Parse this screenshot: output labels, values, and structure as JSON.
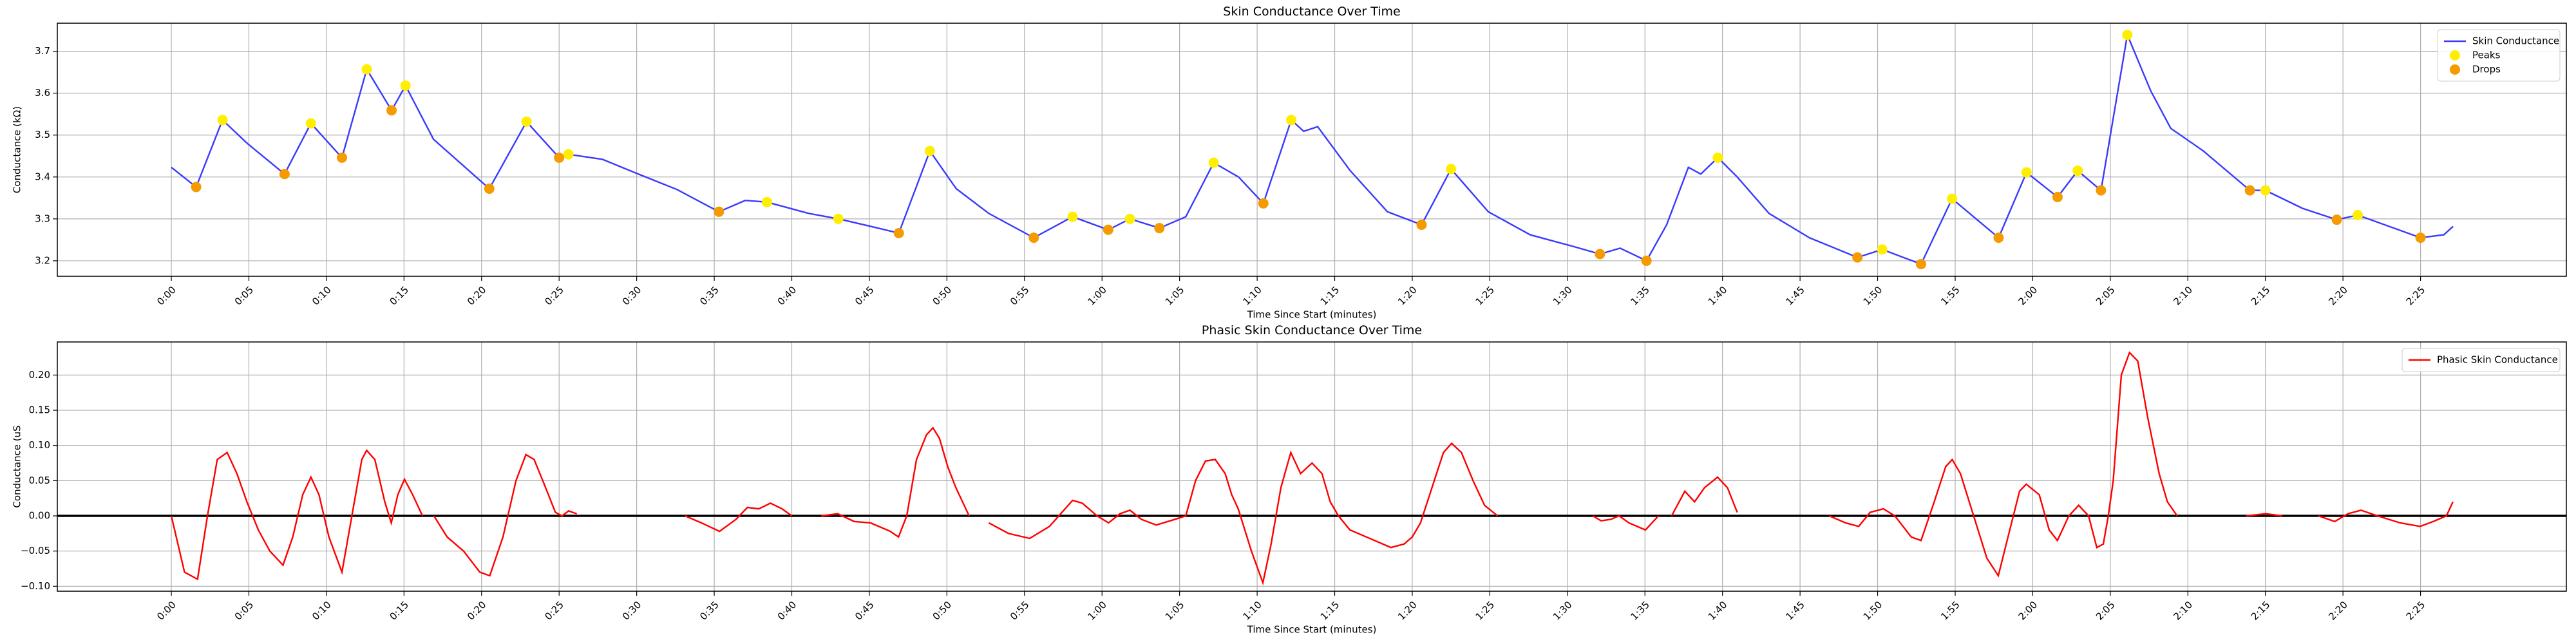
{
  "chart_data": [
    {
      "type": "line",
      "title": "Skin Conductance Over Time",
      "x_label": "Time Since Start (minutes)",
      "y_label": "Conductance (kΩ)",
      "xlim": [
        -7.35,
        154.4
      ],
      "ylim": [
        3.163,
        3.767
      ],
      "grid": true,
      "legend": "upper right",
      "xticks": [
        {
          "value": 0,
          "label": "0:00"
        },
        {
          "value": 5,
          "label": "0:05"
        },
        {
          "value": 10,
          "label": "0:10"
        },
        {
          "value": 15,
          "label": "0:15"
        },
        {
          "value": 20,
          "label": "0:20"
        },
        {
          "value": 25,
          "label": "0:25"
        },
        {
          "value": 30,
          "label": "0:30"
        },
        {
          "value": 35,
          "label": "0:35"
        },
        {
          "value": 40,
          "label": "0:40"
        },
        {
          "value": 45,
          "label": "0:45"
        },
        {
          "value": 50,
          "label": "0:50"
        },
        {
          "value": 55,
          "label": "0:55"
        },
        {
          "value": 60,
          "label": "1:00"
        },
        {
          "value": 65,
          "label": "1:05"
        },
        {
          "value": 70,
          "label": "1:10"
        },
        {
          "value": 75,
          "label": "1:15"
        },
        {
          "value": 80,
          "label": "1:20"
        },
        {
          "value": 85,
          "label": "1:25"
        },
        {
          "value": 90,
          "label": "1:30"
        },
        {
          "value": 95,
          "label": "1:35"
        },
        {
          "value": 100,
          "label": "1:40"
        },
        {
          "value": 105,
          "label": "1:45"
        },
        {
          "value": 110,
          "label": "1:50"
        },
        {
          "value": 115,
          "label": "1:55"
        },
        {
          "value": 120,
          "label": "2:00"
        },
        {
          "value": 125,
          "label": "2:05"
        },
        {
          "value": 130,
          "label": "2:10"
        },
        {
          "value": 135,
          "label": "2:15"
        },
        {
          "value": 140,
          "label": "2:20"
        },
        {
          "value": 145,
          "label": "2:25"
        }
      ],
      "yticks": [
        3.2,
        3.3,
        3.4,
        3.5,
        3.6,
        3.7
      ],
      "series": [
        {
          "name": "Skin Conductance",
          "style": "line",
          "color": "#3a3aff",
          "x": [
            0,
            1.6,
            3.3,
            4.9,
            7.3,
            9.0,
            11.0,
            12.6,
            14.2,
            15.1,
            16.9,
            20.5,
            22.9,
            25.0,
            25.6,
            27.8,
            29.9,
            32.6,
            35.3,
            37.0,
            38.4,
            41.1,
            43.0,
            45.1,
            46.9,
            48.9,
            50.6,
            52.7,
            55.6,
            58.1,
            60.4,
            61.8,
            63.7,
            65.4,
            67.2,
            68.8,
            70.4,
            72.2,
            73.0,
            73.9,
            76.0,
            78.4,
            80.6,
            82.5,
            84.9,
            87.6,
            90.3,
            92.1,
            93.4,
            95.1,
            96.4,
            97.8,
            98.6,
            99.7,
            100.95,
            103.0,
            105.6,
            108.7,
            110.3,
            112.8,
            114.8,
            117.8,
            119.6,
            121.6,
            122.9,
            124.4,
            126.1,
            127.6,
            128.9,
            131.0,
            134.0,
            135.0,
            137.4,
            139.6,
            140.95,
            145.0,
            146.5,
            147.1
          ],
          "values": [
            3.423,
            3.376,
            3.536,
            3.48,
            3.407,
            3.528,
            3.446,
            3.657,
            3.559,
            3.618,
            3.49,
            3.372,
            3.532,
            3.446,
            3.454,
            3.442,
            3.41,
            3.37,
            3.317,
            3.344,
            3.34,
            3.313,
            3.3,
            3.282,
            3.266,
            3.462,
            3.372,
            3.313,
            3.255,
            3.305,
            3.274,
            3.3,
            3.278,
            3.305,
            3.434,
            3.4,
            3.337,
            3.536,
            3.509,
            3.52,
            3.415,
            3.317,
            3.286,
            3.419,
            3.317,
            3.262,
            3.235,
            3.216,
            3.23,
            3.2,
            3.286,
            3.423,
            3.407,
            3.446,
            3.4,
            3.313,
            3.255,
            3.208,
            3.227,
            3.192,
            3.348,
            3.255,
            3.411,
            3.352,
            3.415,
            3.368,
            3.739,
            3.606,
            3.516,
            3.462,
            3.368,
            3.368,
            3.325,
            3.298,
            3.309,
            3.255,
            3.262,
            3.282
          ]
        },
        {
          "name": "Peaks",
          "style": "points",
          "color": "#ffee00",
          "x": [
            3.3,
            9.0,
            12.6,
            15.1,
            22.9,
            25.6,
            38.4,
            43.0,
            48.9,
            58.1,
            61.8,
            67.2,
            72.2,
            82.5,
            99.7,
            110.3,
            114.8,
            119.6,
            122.9,
            126.1,
            135.0,
            140.95
          ],
          "values": [
            3.536,
            3.528,
            3.657,
            3.618,
            3.532,
            3.454,
            3.34,
            3.3,
            3.462,
            3.305,
            3.3,
            3.434,
            3.536,
            3.419,
            3.446,
            3.227,
            3.348,
            3.411,
            3.415,
            3.739,
            3.368,
            3.309
          ]
        },
        {
          "name": "Drops",
          "style": "points",
          "color": "#f59b00",
          "x": [
            1.6,
            7.3,
            11.0,
            14.2,
            20.5,
            25.0,
            35.3,
            46.9,
            55.6,
            60.4,
            63.7,
            70.4,
            80.6,
            92.1,
            95.1,
            108.7,
            112.8,
            117.8,
            121.6,
            124.4,
            134.0,
            139.6,
            145.0
          ],
          "values": [
            3.376,
            3.407,
            3.446,
            3.559,
            3.372,
            3.446,
            3.317,
            3.266,
            3.255,
            3.274,
            3.278,
            3.337,
            3.286,
            3.216,
            3.2,
            3.208,
            3.192,
            3.255,
            3.352,
            3.368,
            3.368,
            3.298,
            3.255
          ]
        }
      ]
    },
    {
      "type": "line",
      "title": "Phasic Skin Conductance Over Time",
      "x_label": "Time Since Start (minutes)",
      "y_label": "Conductance (uS",
      "xlim": [
        -7.35,
        154.4
      ],
      "ylim": [
        -0.107,
        0.247
      ],
      "grid": true,
      "legend": "upper right",
      "reference_line": 0,
      "xticks": [
        {
          "value": 0,
          "label": "0:00"
        },
        {
          "value": 5,
          "label": "0:05"
        },
        {
          "value": 10,
          "label": "0:10"
        },
        {
          "value": 15,
          "label": "0:15"
        },
        {
          "value": 20,
          "label": "0:20"
        },
        {
          "value": 25,
          "label": "0:25"
        },
        {
          "value": 30,
          "label": "0:30"
        },
        {
          "value": 35,
          "label": "0:35"
        },
        {
          "value": 40,
          "label": "0:40"
        },
        {
          "value": 45,
          "label": "0:45"
        },
        {
          "value": 50,
          "label": "0:50"
        },
        {
          "value": 55,
          "label": "0:55"
        },
        {
          "value": 60,
          "label": "1:00"
        },
        {
          "value": 65,
          "label": "1:05"
        },
        {
          "value": 70,
          "label": "1:10"
        },
        {
          "value": 75,
          "label": "1:15"
        },
        {
          "value": 80,
          "label": "1:20"
        },
        {
          "value": 85,
          "label": "1:25"
        },
        {
          "value": 90,
          "label": "1:30"
        },
        {
          "value": 95,
          "label": "1:35"
        },
        {
          "value": 100,
          "label": "1:40"
        },
        {
          "value": 105,
          "label": "1:45"
        },
        {
          "value": 110,
          "label": "1:50"
        },
        {
          "value": 115,
          "label": "1:55"
        },
        {
          "value": 120,
          "label": "2:00"
        },
        {
          "value": 125,
          "label": "2:05"
        },
        {
          "value": 130,
          "label": "2:10"
        },
        {
          "value": 135,
          "label": "2:15"
        },
        {
          "value": 140,
          "label": "2:20"
        },
        {
          "value": 145,
          "label": "2:25"
        }
      ],
      "yticks": [
        {
          "value": -0.1,
          "label": "−0.10"
        },
        {
          "value": -0.05,
          "label": "−0.05"
        },
        {
          "value": 0,
          "label": "0.00"
        },
        0.05,
        {
          "value": 0.1,
          "label": "0.10"
        },
        0.15,
        {
          "value": 0.2,
          "label": "0.20"
        }
      ],
      "series": [
        {
          "name": "Phasic Skin Conductance",
          "style": "line",
          "color": "#ff0000",
          "x": [
            0,
            0.85,
            1.69,
            2.33,
            2.96,
            3.6,
            4.23,
            4.87,
            5.61,
            6.35,
            7.2,
            7.83,
            8.47,
            9.0,
            9.52,
            10.16,
            11.0,
            11.64,
            12.28,
            12.59,
            13.12,
            13.76,
            14.18,
            14.6,
            15.03,
            15.56,
            16.19,
            null,
            16.93,
            17.78,
            18.84,
            19.89,
            20.53,
            21.38,
            22.22,
            22.86,
            23.39,
            24.13,
            24.76,
            25.19,
            25.61,
            26.14,
            null,
            33.12,
            34.18,
            35.34,
            36.4,
            37.14,
            37.88,
            38.62,
            39.37,
            40.0,
            null,
            41.9,
            42.96,
            44.02,
            45.08,
            46.35,
            46.88,
            47.41,
            48.04,
            48.68,
            49.1,
            49.52,
            50.05,
            50.58,
            51.43,
            null,
            52.7,
            53.97,
            55.34,
            56.61,
            58.1,
            58.73,
            59.68,
            60.42,
            61.16,
            61.8,
            62.54,
            63.49,
            64.55,
            65.4,
            66.03,
            66.67,
            67.3,
            67.94,
            68.36,
            68.78,
            69.63,
            70.37,
            70.9,
            71.53,
            72.17,
            72.8,
            73.54,
            74.18,
            74.71,
            75.24,
            75.98,
            77.04,
            78.1,
            78.62,
            79.47,
            80.0,
            80.53,
            81.27,
            82.01,
            82.54,
            83.17,
            83.92,
            84.66,
            85.5,
            null,
            91.64,
            92.17,
            92.8,
            93.33,
            93.97,
            95.03,
            95.87,
            null,
            96.72,
            97.57,
            98.2,
            98.84,
            99.68,
            100.32,
            100.95,
            null,
            106.88,
            107.94,
            108.78,
            109.52,
            110.37,
            111.11,
            112.17,
            112.8,
            113.65,
            114.39,
            114.81,
            115.34,
            116.19,
            117.04,
            117.78,
            118.52,
            119.15,
            119.58,
            120.42,
            121.06,
            121.59,
            122.33,
            122.96,
            123.6,
            124.13,
            124.55,
            124.87,
            125.19,
            125.71,
            126.24,
            126.77,
            127.41,
            128.15,
            128.68,
            129.31,
            null,
            133.76,
            135.03,
            136.08,
            null,
            138.41,
            139.47,
            140.32,
            141.16,
            142.22,
            143.7,
            144.97,
            145.82,
            146.67,
            147.09
          ],
          "values": [
            0,
            -0.08,
            -0.09,
            0.0,
            0.08,
            0.09,
            0.06,
            0.02,
            -0.02,
            -0.05,
            -0.07,
            -0.03,
            0.03,
            0.055,
            0.03,
            -0.03,
            -0.08,
            0.0,
            0.08,
            0.093,
            0.08,
            0.02,
            -0.01,
            0.03,
            0.052,
            0.03,
            0.0,
            null,
            0.0,
            -0.03,
            -0.05,
            -0.08,
            -0.085,
            -0.03,
            0.05,
            0.087,
            0.08,
            0.04,
            0.005,
            0.0,
            0.007,
            0.003,
            null,
            0.0,
            -0.01,
            -0.022,
            -0.005,
            0.012,
            0.01,
            0.018,
            0.01,
            0.0,
            null,
            0.0,
            0.003,
            -0.008,
            -0.01,
            -0.022,
            -0.03,
            0.0,
            0.08,
            0.115,
            0.125,
            0.11,
            0.07,
            0.04,
            0.0,
            null,
            -0.01,
            -0.025,
            -0.032,
            -0.015,
            0.022,
            0.018,
            0.0,
            -0.01,
            0.003,
            0.008,
            -0.005,
            -0.013,
            -0.006,
            0.0,
            0.05,
            0.078,
            0.08,
            0.06,
            0.03,
            0.01,
            -0.05,
            -0.095,
            -0.04,
            0.04,
            0.09,
            0.06,
            0.075,
            0.06,
            0.02,
            0.0,
            -0.02,
            -0.03,
            -0.04,
            -0.045,
            -0.04,
            -0.03,
            -0.01,
            0.04,
            0.09,
            0.103,
            0.09,
            0.05,
            0.015,
            0.0,
            null,
            0.0,
            -0.007,
            -0.005,
            0.0,
            -0.01,
            -0.02,
            0.0,
            null,
            0.0,
            0.035,
            0.02,
            0.04,
            0.055,
            0.04,
            0.005,
            null,
            0.0,
            -0.01,
            -0.015,
            0.005,
            0.01,
            0.0,
            -0.03,
            -0.035,
            0.02,
            0.07,
            0.08,
            0.06,
            0.0,
            -0.06,
            -0.085,
            -0.02,
            0.035,
            0.045,
            0.03,
            -0.02,
            -0.035,
            0.0,
            0.015,
            0.0,
            -0.045,
            -0.04,
            0.0,
            0.05,
            0.2,
            0.232,
            0.22,
            0.14,
            0.06,
            0.02,
            0.0,
            null,
            0.0,
            0.003,
            0.0,
            null,
            0.0,
            -0.008,
            0.003,
            0.008,
            0.0,
            -0.01,
            -0.015,
            -0.008,
            0.0,
            0.02
          ]
        }
      ]
    }
  ]
}
